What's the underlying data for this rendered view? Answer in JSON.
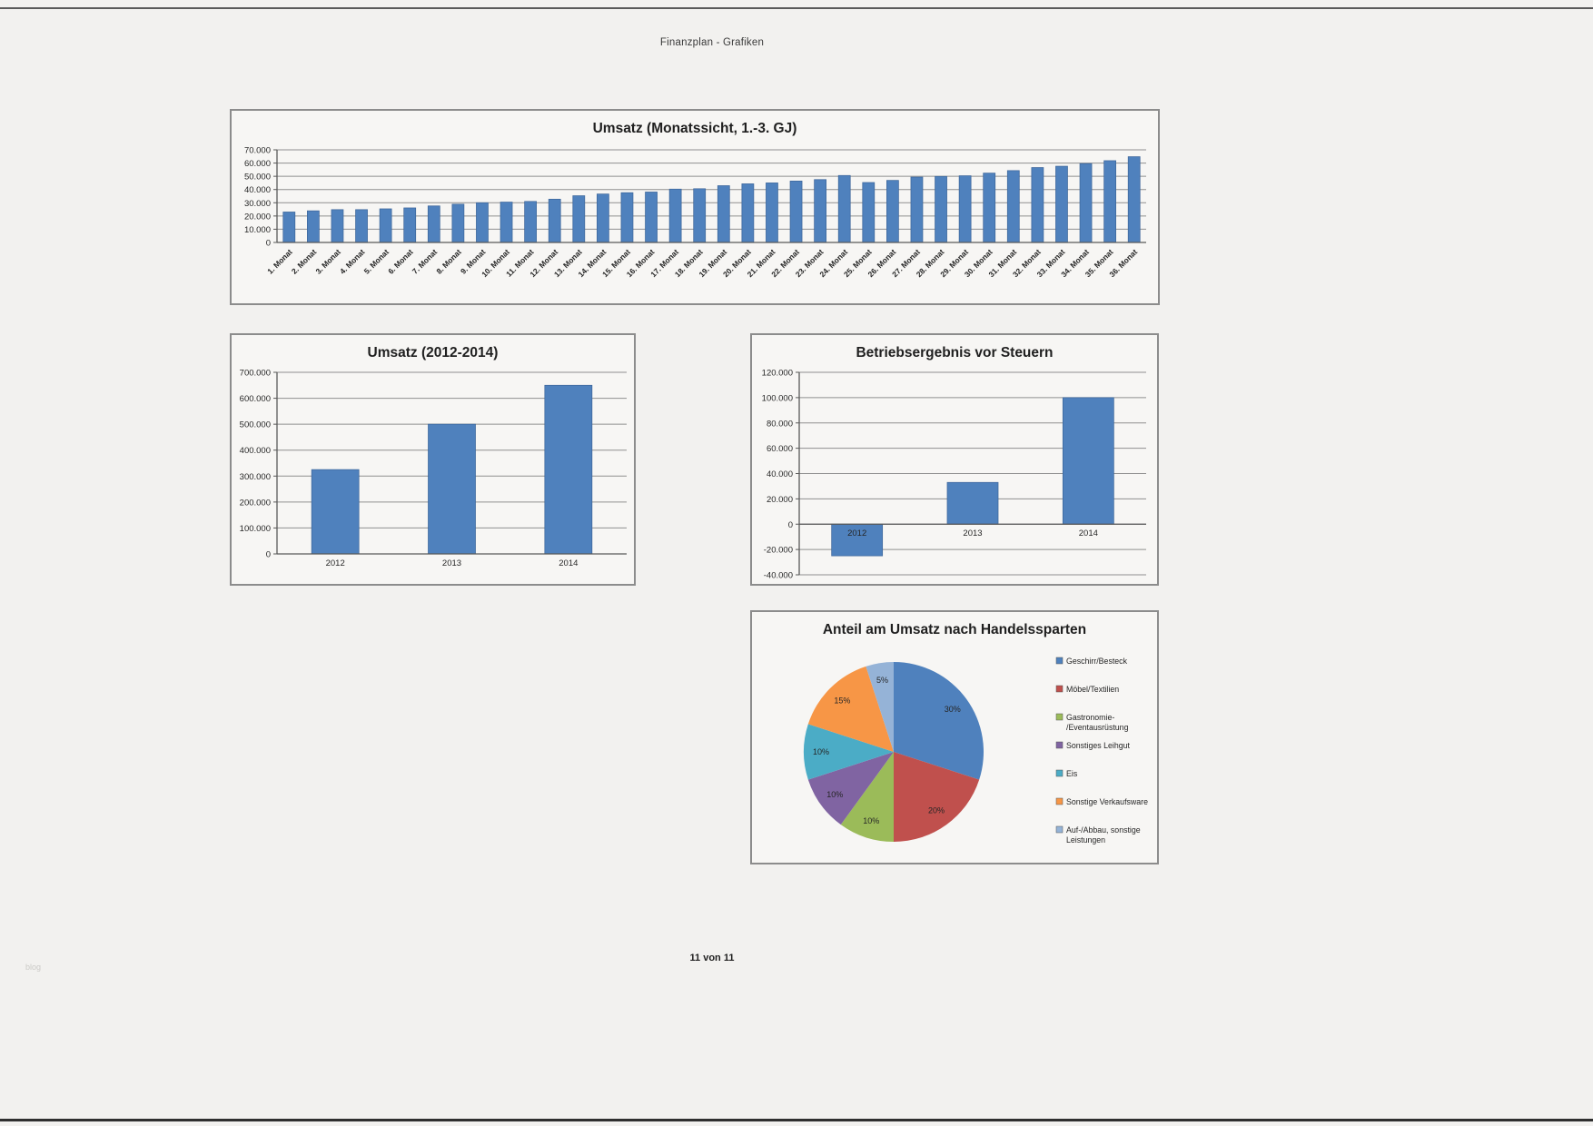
{
  "page": {
    "header_title": "Finanzplan - Grafiken",
    "footer_text": "11 von 11",
    "watermark": "blog"
  },
  "colors": {
    "bar": "#4f81bd",
    "bar_edge": "#3e679b",
    "grid": "#8f8f8f",
    "axis": "#595959",
    "box_border": "#8c8c8c",
    "pie": [
      "#4f81bd",
      "#c0504d",
      "#9bbb59",
      "#8064a2",
      "#4bacc6",
      "#f79646",
      "#95b3d7"
    ]
  },
  "chart_data": [
    {
      "id": "umsatz-monatssicht",
      "type": "bar",
      "title": "Umsatz (Monatssicht, 1.-3. GJ)",
      "categories": [
        "1. Monat",
        "2. Monat",
        "3. Monat",
        "4. Monat",
        "5. Monat",
        "6. Monat",
        "7. Monat",
        "8. Monat",
        "9. Monat",
        "10. Monat",
        "11. Monat",
        "12. Monat",
        "13. Monat",
        "14. Monat",
        "15. Monat",
        "16. Monat",
        "17. Monat",
        "18. Monat",
        "19. Monat",
        "20. Monat",
        "21. Monat",
        "22. Monat",
        "23. Monat",
        "24. Monat",
        "25. Monat",
        "26. Monat",
        "27. Monat",
        "28. Monat",
        "29. Monat",
        "30. Monat",
        "31. Monat",
        "32. Monat",
        "33. Monat",
        "34. Monat",
        "35. Monat",
        "36. Monat"
      ],
      "values": [
        23000,
        23900,
        24800,
        24800,
        25400,
        26100,
        27600,
        28900,
        30000,
        30500,
        31000,
        32700,
        35300,
        36600,
        37600,
        38100,
        40300,
        40600,
        42900,
        44300,
        45000,
        46400,
        47500,
        50600,
        45300,
        46900,
        49400,
        49900,
        50400,
        52400,
        54300,
        56600,
        57600,
        59600,
        61800,
        64800
      ],
      "ylabel": "",
      "xlabel": "",
      "ylim": [
        0,
        70000
      ],
      "ystep": 10000,
      "yticks": [
        "0",
        "10.000",
        "20.000",
        "30.000",
        "40.000",
        "50.000",
        "60.000",
        "70.000"
      ],
      "grid": true,
      "legend_position": "none"
    },
    {
      "id": "umsatz-jahre",
      "type": "bar",
      "title": "Umsatz (2012-2014)",
      "categories": [
        "2012",
        "2013",
        "2014"
      ],
      "values": [
        325000,
        500000,
        650000
      ],
      "ylabel": "",
      "xlabel": "",
      "ylim": [
        0,
        700000
      ],
      "ystep": 100000,
      "yticks": [
        "0",
        "100.000",
        "200.000",
        "300.000",
        "400.000",
        "500.000",
        "600.000",
        "700.000"
      ],
      "grid": true,
      "legend_position": "none"
    },
    {
      "id": "betriebsergebnis",
      "type": "bar",
      "title": "Betriebsergebnis vor Steuern",
      "categories": [
        "2012",
        "2013",
        "2014"
      ],
      "values": [
        -25000,
        33000,
        100000
      ],
      "ylabel": "",
      "xlabel": "",
      "ylim": [
        -40000,
        120000
      ],
      "ystep": 20000,
      "yticks": [
        "-40.000",
        "-20.000",
        "0",
        "20.000",
        "40.000",
        "60.000",
        "80.000",
        "100.000",
        "120.000"
      ],
      "grid": true,
      "legend_position": "none"
    },
    {
      "id": "umsatzanteile",
      "type": "pie",
      "title": "Anteil am Umsatz nach Handelssparten",
      "labels": [
        "Geschirr/Besteck",
        "Möbel/Textilien",
        "Gastronomie-/Eventausrüstung",
        "Sonstiges Leihgut",
        "Eis",
        "Sonstige Verkaufsware",
        "Auf-/Abbau, sonstige Leistungen"
      ],
      "legend_lines": [
        [
          "Geschirr/Besteck"
        ],
        [
          "Möbel/Textilien"
        ],
        [
          "Gastronomie-",
          "/Eventausrüstung"
        ],
        [
          "Sonstiges Leihgut"
        ],
        [
          "Eis"
        ],
        [
          "Sonstige Verkaufsware"
        ],
        [
          "Auf-/Abbau, sonstige",
          "Leistungen"
        ]
      ],
      "values": [
        30,
        20,
        10,
        10,
        10,
        15,
        5
      ],
      "value_labels": [
        "30%",
        "20%",
        "10%",
        "10%",
        "10%",
        "15%",
        "5%"
      ],
      "legend_position": "right"
    }
  ]
}
